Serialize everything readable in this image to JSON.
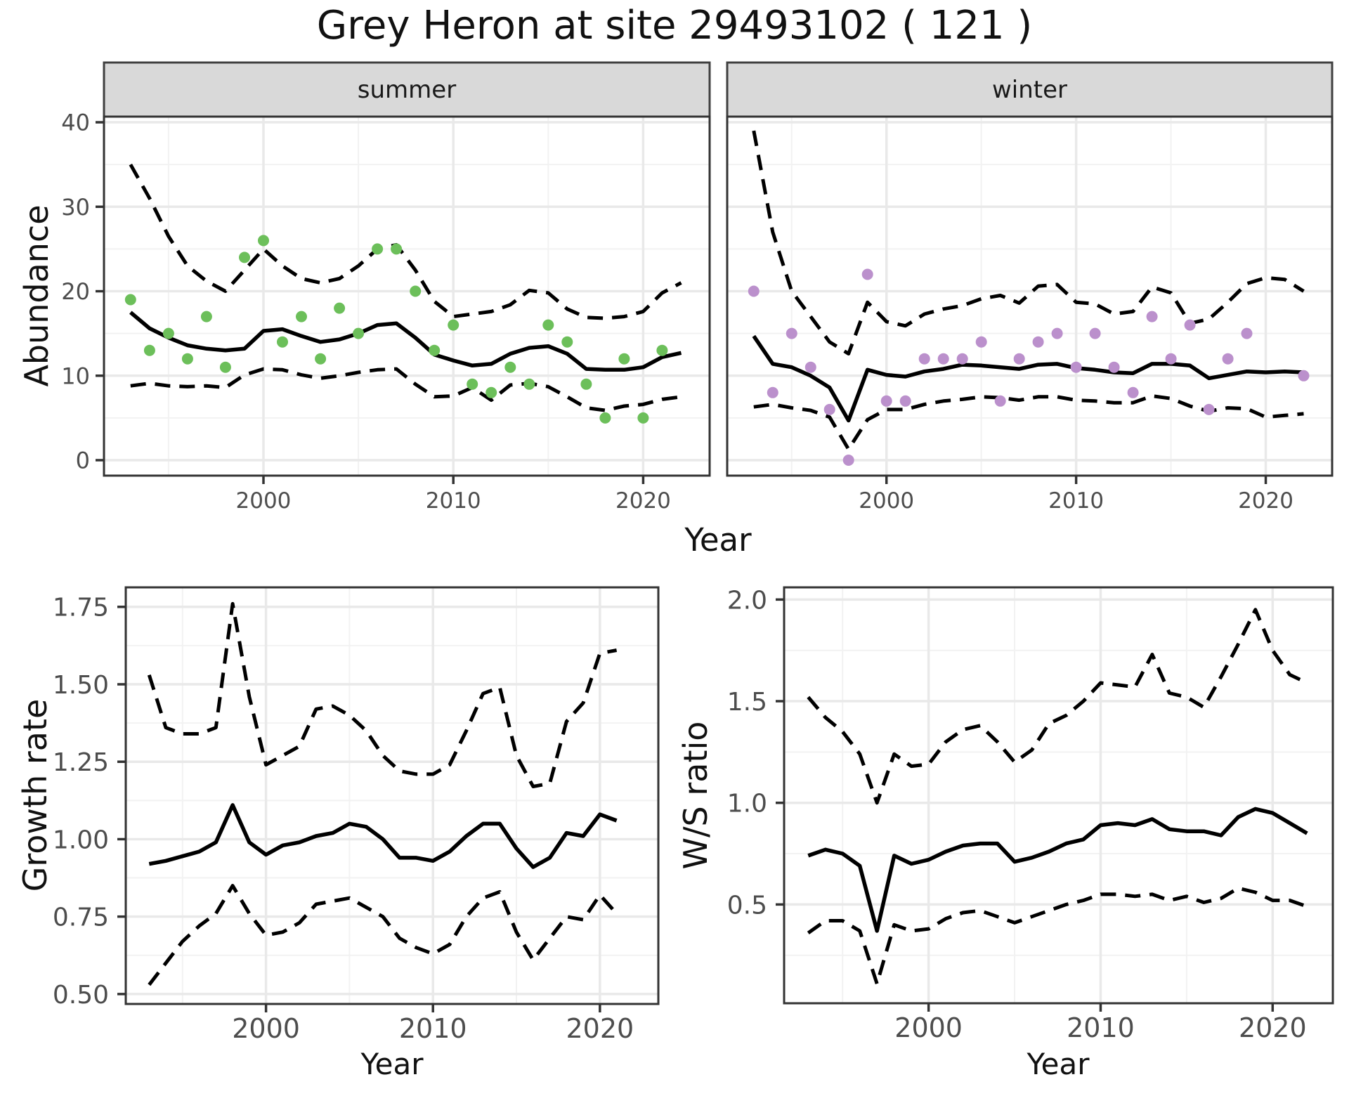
{
  "title": "Grey Heron at site 29493102 ( 121 )",
  "colors": {
    "summer_points": "#6cbf5a",
    "winter_points": "#bb90cc",
    "fit_line": "#000000",
    "ci_line": "#000000",
    "strip_bg": "#d9d9d9",
    "panel_border": "#333333",
    "strip_border": "#404040",
    "grid_major": "#e9e9e9",
    "grid_minor": "#f2f2f2",
    "tick_text": "#4d4d4d"
  },
  "chart_data": [
    {
      "id": "summer",
      "type": "scatter",
      "facet_label": "summer",
      "xlabel": "Year",
      "ylabel": "Abundance",
      "xlim": [
        1991.6,
        2023.5
      ],
      "ylim": [
        -1.83,
        40.67
      ],
      "x_ticks": [
        2000,
        2010,
        2020
      ],
      "x_tick_labels": [
        "2000",
        "2010",
        "2020"
      ],
      "x_minor_ticks": [
        1995,
        2005,
        2015
      ],
      "y_ticks": [
        0,
        10,
        20,
        30,
        40
      ],
      "y_tick_labels": [
        "0",
        "10",
        "20",
        "30",
        "40"
      ],
      "y_minor_ticks": [
        5,
        15,
        25,
        35
      ],
      "years": [
        1993,
        1994,
        1995,
        1996,
        1997,
        1998,
        1999,
        2000,
        2001,
        2002,
        2003,
        2004,
        2005,
        2006,
        2007,
        2008,
        2009,
        2010,
        2011,
        2012,
        2013,
        2014,
        2015,
        2016,
        2017,
        2018,
        2019,
        2020,
        2021,
        2022
      ],
      "fit": [
        17.5,
        15.6,
        14.5,
        13.6,
        13.2,
        13.0,
        13.2,
        15.3,
        15.5,
        14.7,
        14.0,
        14.3,
        15.0,
        16.0,
        16.2,
        14.5,
        12.5,
        11.8,
        11.2,
        11.4,
        12.6,
        13.3,
        13.5,
        12.6,
        10.8,
        10.7,
        10.7,
        11.0,
        12.2,
        12.7
      ],
      "upper_ci": [
        35,
        31,
        26.5,
        23,
        21.2,
        20,
        22.5,
        25,
        23,
        21.5,
        21,
        21.5,
        23,
        25,
        25.5,
        22.5,
        18.8,
        17,
        17.3,
        17.6,
        18.4,
        20.1,
        19.8,
        17.9,
        16.9,
        16.8,
        17,
        17.6,
        19.8,
        21
      ],
      "lower_ci": [
        8.8,
        9.1,
        8.8,
        8.7,
        8.8,
        8.6,
        10.1,
        10.8,
        10.7,
        10.1,
        9.7,
        10,
        10.4,
        10.7,
        10.8,
        9,
        7.5,
        7.6,
        8.6,
        7.1,
        8.9,
        9.1,
        8.7,
        7.5,
        6.2,
        5.9,
        6.4,
        6.6,
        7.2,
        7.5
      ],
      "points_x": [
        1993,
        1994,
        1995,
        1996,
        1997,
        1998,
        1999,
        2000,
        2001,
        2002,
        2003,
        2004,
        2005,
        2006,
        2007,
        2008,
        2009,
        2010,
        2011,
        2012,
        2013,
        2014,
        2015,
        2016,
        2017,
        2018,
        2019,
        2020,
        2021
      ],
      "points_y": [
        19,
        13,
        15,
        12,
        17,
        11,
        24,
        26,
        14,
        17,
        12,
        18,
        15,
        25,
        25,
        20,
        13,
        16,
        9,
        8,
        11,
        9,
        16,
        14,
        9,
        5,
        12,
        5,
        13
      ],
      "point_color": "#6cbf5a"
    },
    {
      "id": "winter",
      "type": "scatter",
      "facet_label": "winter",
      "xlabel": "Year",
      "ylabel": "Abundance",
      "xlim": [
        1991.6,
        2023.5
      ],
      "ylim": [
        -1.83,
        40.67
      ],
      "x_ticks": [
        2000,
        2010,
        2020
      ],
      "x_tick_labels": [
        "2000",
        "2010",
        "2020"
      ],
      "x_minor_ticks": [
        1995,
        2005,
        2015
      ],
      "y_ticks": [
        0,
        10,
        20,
        30,
        40
      ],
      "y_tick_labels": [
        "0",
        "10",
        "20",
        "30",
        "40"
      ],
      "y_minor_ticks": [
        5,
        15,
        25,
        35
      ],
      "years": [
        1993,
        1994,
        1995,
        1996,
        1997,
        1998,
        1999,
        2000,
        2001,
        2002,
        2003,
        2004,
        2005,
        2006,
        2007,
        2008,
        2009,
        2010,
        2011,
        2012,
        2013,
        2014,
        2015,
        2016,
        2017,
        2018,
        2019,
        2020,
        2021,
        2022
      ],
      "fit": [
        14.7,
        11.4,
        11.0,
        10.0,
        8.6,
        4.7,
        10.7,
        10.1,
        9.9,
        10.5,
        10.8,
        11.3,
        11.2,
        11.0,
        10.8,
        11.3,
        11.4,
        10.9,
        10.7,
        10.4,
        10.3,
        11.4,
        11.4,
        11.2,
        9.7,
        10.1,
        10.5,
        10.4,
        10.5,
        10.4
      ],
      "upper_ci": [
        39,
        27,
        20,
        17,
        14,
        12.6,
        18.7,
        16.4,
        15.9,
        17.3,
        17.9,
        18.3,
        19.1,
        19.5,
        18.6,
        20.6,
        20.8,
        18.7,
        18.5,
        17.3,
        17.6,
        20.5,
        19.8,
        16.2,
        16.7,
        18.7,
        20.9,
        21.6,
        21.4,
        20
      ],
      "lower_ci": [
        6.3,
        6.6,
        6.2,
        5.9,
        5.1,
        1.3,
        4.8,
        6.0,
        6.0,
        6.6,
        7.0,
        7.2,
        7.5,
        7.4,
        7.1,
        7.5,
        7.5,
        7.1,
        7.0,
        6.8,
        6.8,
        7.6,
        7.3,
        6.4,
        5.8,
        6.2,
        6.1,
        5.1,
        5.3,
        5.5
      ],
      "points_x": [
        1993,
        1994,
        1995,
        1996,
        1997,
        1998,
        1999,
        2000,
        2001,
        2002,
        2003,
        2004,
        2005,
        2006,
        2007,
        2008,
        2009,
        2010,
        2011,
        2012,
        2013,
        2014,
        2015,
        2016,
        2017,
        2018,
        2019,
        2022
      ],
      "points_y": [
        20,
        8,
        15,
        11,
        6,
        0,
        22,
        7,
        7,
        12,
        12,
        12,
        14,
        7,
        12,
        14,
        15,
        11,
        15,
        11,
        8,
        17,
        12,
        16,
        6,
        12,
        15,
        10
      ],
      "point_color": "#bb90cc"
    },
    {
      "id": "growth",
      "type": "line",
      "facet_label": "",
      "xlabel": "Year",
      "ylabel": "Growth rate",
      "xlim": [
        1991.6,
        2023.5
      ],
      "ylim": [
        0.468,
        1.813
      ],
      "x_ticks": [
        2000,
        2010,
        2020
      ],
      "x_tick_labels": [
        "2000",
        "2010",
        "2020"
      ],
      "x_minor_ticks": [
        1995,
        2005,
        2015
      ],
      "y_ticks": [
        0.5,
        0.75,
        1.0,
        1.25,
        1.5,
        1.75
      ],
      "y_tick_labels": [
        "0.50",
        "0.75",
        "1.00",
        "1.25",
        "1.50",
        "1.75"
      ],
      "y_minor_ticks": [
        0.625,
        0.875,
        1.125,
        1.375,
        1.625
      ],
      "years": [
        1993,
        1994,
        1995,
        1996,
        1997,
        1998,
        1999,
        2000,
        2001,
        2002,
        2003,
        2004,
        2005,
        2006,
        2007,
        2008,
        2009,
        2010,
        2011,
        2012,
        2013,
        2014,
        2015,
        2016,
        2017,
        2018,
        2019,
        2020,
        2021
      ],
      "fit": [
        0.92,
        0.93,
        0.945,
        0.96,
        0.99,
        1.11,
        0.99,
        0.95,
        0.98,
        0.99,
        1.01,
        1.02,
        1.05,
        1.04,
        1.0,
        0.94,
        0.94,
        0.93,
        0.96,
        1.01,
        1.05,
        1.05,
        0.97,
        0.91,
        0.94,
        1.02,
        1.01,
        1.08,
        1.06
      ],
      "upper_ci": [
        1.53,
        1.36,
        1.34,
        1.34,
        1.36,
        1.76,
        1.46,
        1.24,
        1.27,
        1.3,
        1.42,
        1.43,
        1.4,
        1.35,
        1.27,
        1.22,
        1.21,
        1.21,
        1.24,
        1.35,
        1.47,
        1.49,
        1.27,
        1.17,
        1.18,
        1.38,
        1.44,
        1.6,
        1.61
      ],
      "lower_ci": [
        0.53,
        0.6,
        0.67,
        0.72,
        0.76,
        0.85,
        0.76,
        0.69,
        0.7,
        0.73,
        0.79,
        0.8,
        0.81,
        0.78,
        0.75,
        0.68,
        0.65,
        0.63,
        0.66,
        0.75,
        0.81,
        0.83,
        0.7,
        0.61,
        0.68,
        0.75,
        0.74,
        0.82,
        0.76
      ],
      "points_x": [],
      "points_y": [],
      "point_color": "#000000"
    },
    {
      "id": "ws",
      "type": "line",
      "facet_label": "",
      "xlabel": "Year",
      "ylabel": "W/S ratio",
      "xlim": [
        1991.6,
        2023.5
      ],
      "ylim": [
        0.014,
        2.06
      ],
      "x_ticks": [
        2000,
        2010,
        2020
      ],
      "x_tick_labels": [
        "2000",
        "2010",
        "2020"
      ],
      "x_minor_ticks": [
        1995,
        2005,
        2015
      ],
      "y_ticks": [
        0.5,
        1.0,
        1.5,
        2.0
      ],
      "y_tick_labels": [
        "0.5",
        "1.0",
        "1.5",
        "2.0"
      ],
      "y_minor_ticks": [
        0.25,
        0.75,
        1.25,
        1.75
      ],
      "years": [
        1993,
        1994,
        1995,
        1996,
        1997,
        1998,
        1999,
        2000,
        2001,
        2002,
        2003,
        2004,
        2005,
        2006,
        2007,
        2008,
        2009,
        2010,
        2011,
        2012,
        2013,
        2014,
        2015,
        2016,
        2017,
        2018,
        2019,
        2020,
        2021,
        2022
      ],
      "fit": [
        0.74,
        0.77,
        0.75,
        0.69,
        0.37,
        0.74,
        0.7,
        0.72,
        0.76,
        0.79,
        0.8,
        0.8,
        0.71,
        0.73,
        0.76,
        0.8,
        0.82,
        0.89,
        0.9,
        0.89,
        0.92,
        0.87,
        0.86,
        0.86,
        0.84,
        0.93,
        0.97,
        0.95,
        0.9,
        0.85
      ],
      "upper_ci": [
        1.52,
        1.42,
        1.35,
        1.24,
        1.0,
        1.24,
        1.18,
        1.19,
        1.3,
        1.36,
        1.38,
        1.3,
        1.2,
        1.26,
        1.39,
        1.43,
        1.5,
        1.59,
        1.58,
        1.57,
        1.73,
        1.54,
        1.52,
        1.47,
        1.62,
        1.78,
        1.95,
        1.75,
        1.63,
        1.59
      ],
      "lower_ci": [
        0.36,
        0.42,
        0.42,
        0.37,
        0.11,
        0.4,
        0.37,
        0.38,
        0.43,
        0.46,
        0.47,
        0.44,
        0.41,
        0.44,
        0.47,
        0.5,
        0.52,
        0.55,
        0.55,
        0.54,
        0.55,
        0.52,
        0.54,
        0.51,
        0.53,
        0.58,
        0.56,
        0.52,
        0.52,
        0.49
      ],
      "points_x": [],
      "points_y": [],
      "point_color": "#000000"
    }
  ]
}
